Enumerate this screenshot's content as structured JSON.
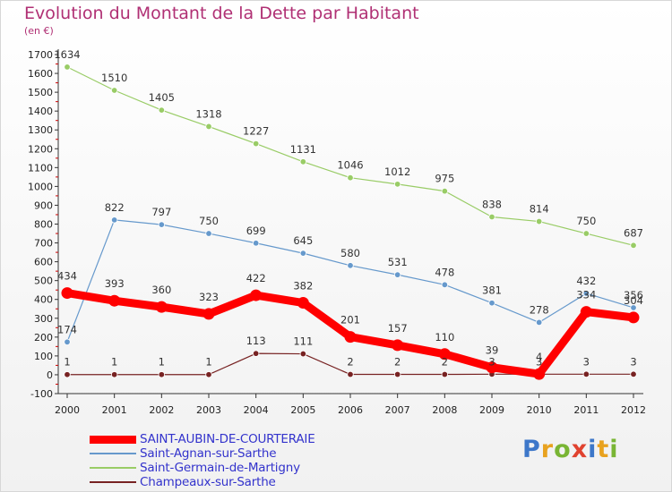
{
  "header": {
    "title": "Evolution du Montant de la Dette par Habitant",
    "subtitle": "(en €)"
  },
  "brand": {
    "letters": [
      "P",
      "r",
      "o",
      "x",
      "i",
      "t",
      "i"
    ],
    "colors": [
      "#3d77c9",
      "#e8a21f",
      "#79b534",
      "#e0422f",
      "#3d77c9",
      "#e8a21f",
      "#79b534"
    ]
  },
  "chart_data": {
    "type": "line",
    "x": [
      "2000",
      "2001",
      "2002",
      "2003",
      "2004",
      "2005",
      "2006",
      "2007",
      "2008",
      "2009",
      "2010",
      "2011",
      "2012"
    ],
    "ylim": [
      -100,
      1700
    ],
    "yticks": [
      -100,
      0,
      100,
      200,
      300,
      400,
      500,
      600,
      700,
      800,
      900,
      1000,
      1100,
      1200,
      1300,
      1400,
      1500,
      1600,
      1700
    ],
    "grid": false,
    "legend": "bottom-left",
    "series": [
      {
        "name": "SAINT-AUBIN-DE-COURTERAIE",
        "color": "#ff0000",
        "values": [
          434,
          393,
          360,
          323,
          422,
          382,
          201,
          157,
          110,
          39,
          4,
          334,
          304
        ]
      },
      {
        "name": "Saint-Agnan-sur-Sarthe",
        "color": "#6699cc",
        "values": [
          174,
          822,
          797,
          750,
          699,
          645,
          580,
          531,
          478,
          381,
          278,
          432,
          356
        ]
      },
      {
        "name": "Saint-Germain-de-Martigny",
        "color": "#99cc66",
        "values": [
          1634,
          1510,
          1405,
          1318,
          1227,
          1131,
          1046,
          1012,
          975,
          838,
          814,
          750,
          687
        ]
      },
      {
        "name": "Champeaux-sur-Sarthe",
        "color": "#772222",
        "values": [
          1,
          1,
          1,
          1,
          113,
          111,
          2,
          2,
          2,
          3,
          3,
          3,
          3
        ]
      }
    ]
  }
}
